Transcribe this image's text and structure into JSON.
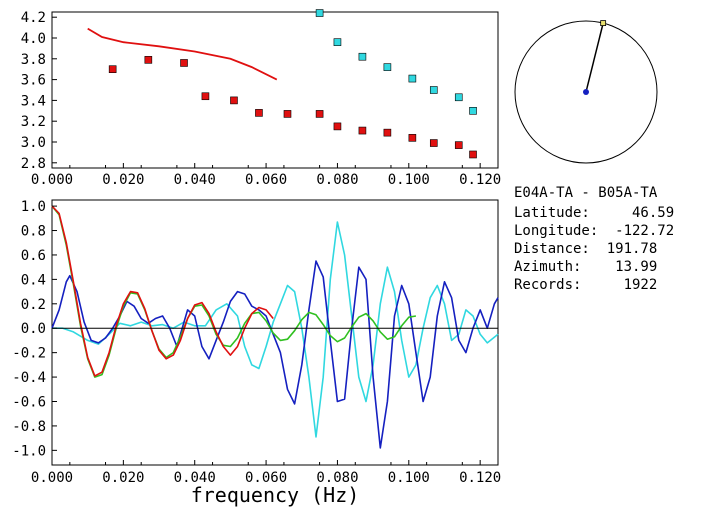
{
  "chart_data": [
    {
      "type": "scatter",
      "panel": "dispersion",
      "xlim": [
        0.0,
        0.125
      ],
      "ylim": [
        2.75,
        4.25
      ],
      "x_ticks": [
        "0.000",
        "0.020",
        "0.040",
        "0.060",
        "0.080",
        "0.100",
        "0.120"
      ],
      "y_ticks": [
        "2.8",
        "3.0",
        "3.2",
        "3.4",
        "3.6",
        "3.8",
        "4.0",
        "4.2"
      ],
      "grid": false,
      "series": [
        {
          "marker": "square",
          "color": "#e01010",
          "points": [
            [
              0.017,
              3.7
            ],
            [
              0.027,
              3.79
            ],
            [
              0.037,
              3.76
            ],
            [
              0.043,
              3.44
            ],
            [
              0.051,
              3.4
            ],
            [
              0.058,
              3.28
            ],
            [
              0.066,
              3.27
            ],
            [
              0.075,
              3.27
            ],
            [
              0.08,
              3.15
            ],
            [
              0.087,
              3.11
            ],
            [
              0.094,
              3.09
            ],
            [
              0.101,
              3.04
            ],
            [
              0.107,
              2.99
            ],
            [
              0.114,
              2.97
            ],
            [
              0.118,
              2.88
            ]
          ]
        },
        {
          "marker": "square",
          "color": "#30d8e0",
          "points": [
            [
              0.075,
              4.24
            ],
            [
              0.08,
              3.96
            ],
            [
              0.087,
              3.82
            ],
            [
              0.094,
              3.72
            ],
            [
              0.101,
              3.61
            ],
            [
              0.107,
              3.5
            ],
            [
              0.114,
              3.43
            ],
            [
              0.118,
              3.3
            ]
          ]
        },
        {
          "marker": "line",
          "color": "#e01010",
          "points": [
            [
              0.01,
              4.09
            ],
            [
              0.014,
              4.01
            ],
            [
              0.02,
              3.96
            ],
            [
              0.03,
              3.92
            ],
            [
              0.04,
              3.87
            ],
            [
              0.05,
              3.8
            ],
            [
              0.056,
              3.72
            ],
            [
              0.063,
              3.6
            ]
          ]
        }
      ]
    },
    {
      "type": "line",
      "panel": "correlation",
      "xlim": [
        0.0,
        0.125
      ],
      "ylim": [
        -1.12,
        1.05
      ],
      "x_ticks": [
        "0.000",
        "0.020",
        "0.040",
        "0.060",
        "0.080",
        "0.100",
        "0.120"
      ],
      "y_ticks": [
        "1.0",
        "0.8",
        "0.6",
        "0.4",
        "0.2",
        "0.0",
        "-0.2",
        "-0.4",
        "-0.6",
        "-0.8",
        "-1.0"
      ],
      "xlabel": "frequency (Hz)",
      "grid": false,
      "series": [
        {
          "color": "#30d8e0",
          "points": [
            [
              0.0,
              0.0
            ],
            [
              0.003,
              0.0
            ],
            [
              0.006,
              -0.03
            ],
            [
              0.01,
              -0.1
            ],
            [
              0.013,
              -0.13
            ],
            [
              0.016,
              -0.05
            ],
            [
              0.019,
              0.04
            ],
            [
              0.022,
              0.02
            ],
            [
              0.025,
              0.05
            ],
            [
              0.028,
              0.02
            ],
            [
              0.031,
              0.03
            ],
            [
              0.034,
              0.0
            ],
            [
              0.037,
              0.05
            ],
            [
              0.04,
              0.02
            ],
            [
              0.043,
              0.02
            ],
            [
              0.046,
              0.15
            ],
            [
              0.049,
              0.2
            ],
            [
              0.052,
              0.1
            ],
            [
              0.054,
              -0.15
            ],
            [
              0.056,
              -0.3
            ],
            [
              0.058,
              -0.33
            ],
            [
              0.06,
              -0.15
            ],
            [
              0.062,
              0.05
            ],
            [
              0.064,
              0.2
            ],
            [
              0.066,
              0.35
            ],
            [
              0.068,
              0.3
            ],
            [
              0.07,
              0.0
            ],
            [
              0.072,
              -0.4
            ],
            [
              0.074,
              -0.89
            ],
            [
              0.076,
              -0.4
            ],
            [
              0.078,
              0.4
            ],
            [
              0.08,
              0.87
            ],
            [
              0.082,
              0.6
            ],
            [
              0.084,
              0.1
            ],
            [
              0.086,
              -0.4
            ],
            [
              0.088,
              -0.6
            ],
            [
              0.09,
              -0.3
            ],
            [
              0.092,
              0.2
            ],
            [
              0.094,
              0.5
            ],
            [
              0.096,
              0.3
            ],
            [
              0.098,
              -0.1
            ],
            [
              0.1,
              -0.4
            ],
            [
              0.102,
              -0.3
            ],
            [
              0.104,
              0.0
            ],
            [
              0.106,
              0.25
            ],
            [
              0.108,
              0.35
            ],
            [
              0.11,
              0.2
            ],
            [
              0.112,
              -0.1
            ],
            [
              0.114,
              -0.05
            ],
            [
              0.116,
              0.15
            ],
            [
              0.118,
              0.1
            ],
            [
              0.12,
              -0.05
            ],
            [
              0.122,
              -0.12
            ],
            [
              0.125,
              -0.05
            ]
          ]
        },
        {
          "color": "#1520c0",
          "points": [
            [
              0.0,
              0.0
            ],
            [
              0.002,
              0.15
            ],
            [
              0.004,
              0.38
            ],
            [
              0.005,
              0.43
            ],
            [
              0.007,
              0.3
            ],
            [
              0.009,
              0.05
            ],
            [
              0.011,
              -0.1
            ],
            [
              0.013,
              -0.12
            ],
            [
              0.015,
              -0.08
            ],
            [
              0.017,
              0.0
            ],
            [
              0.019,
              0.1
            ],
            [
              0.021,
              0.22
            ],
            [
              0.023,
              0.18
            ],
            [
              0.025,
              0.08
            ],
            [
              0.027,
              0.04
            ],
            [
              0.029,
              0.08
            ],
            [
              0.031,
              0.1
            ],
            [
              0.033,
              0.0
            ],
            [
              0.035,
              -0.15
            ],
            [
              0.036,
              -0.05
            ],
            [
              0.038,
              0.15
            ],
            [
              0.04,
              0.1
            ],
            [
              0.042,
              -0.15
            ],
            [
              0.044,
              -0.25
            ],
            [
              0.046,
              -0.1
            ],
            [
              0.048,
              0.05
            ],
            [
              0.05,
              0.22
            ],
            [
              0.052,
              0.3
            ],
            [
              0.054,
              0.28
            ],
            [
              0.056,
              0.18
            ],
            [
              0.058,
              0.15
            ],
            [
              0.06,
              0.1
            ],
            [
              0.062,
              -0.05
            ],
            [
              0.064,
              -0.2
            ],
            [
              0.066,
              -0.5
            ],
            [
              0.068,
              -0.62
            ],
            [
              0.07,
              -0.3
            ],
            [
              0.072,
              0.15
            ],
            [
              0.074,
              0.55
            ],
            [
              0.076,
              0.42
            ],
            [
              0.078,
              -0.1
            ],
            [
              0.08,
              -0.6
            ],
            [
              0.082,
              -0.58
            ],
            [
              0.084,
              0.0
            ],
            [
              0.086,
              0.5
            ],
            [
              0.088,
              0.4
            ],
            [
              0.09,
              -0.4
            ],
            [
              0.092,
              -0.98
            ],
            [
              0.094,
              -0.6
            ],
            [
              0.096,
              0.1
            ],
            [
              0.098,
              0.35
            ],
            [
              0.1,
              0.2
            ],
            [
              0.102,
              -0.2
            ],
            [
              0.104,
              -0.6
            ],
            [
              0.106,
              -0.4
            ],
            [
              0.108,
              0.1
            ],
            [
              0.11,
              0.38
            ],
            [
              0.112,
              0.25
            ],
            [
              0.114,
              -0.1
            ],
            [
              0.116,
              -0.2
            ],
            [
              0.118,
              0.0
            ],
            [
              0.12,
              0.15
            ],
            [
              0.122,
              0.0
            ],
            [
              0.124,
              0.2
            ],
            [
              0.125,
              0.25
            ]
          ]
        },
        {
          "color": "#30c020",
          "points": [
            [
              0.0,
              1.0
            ],
            [
              0.002,
              0.93
            ],
            [
              0.004,
              0.68
            ],
            [
              0.006,
              0.36
            ],
            [
              0.008,
              0.02
            ],
            [
              0.01,
              -0.25
            ],
            [
              0.012,
              -0.4
            ],
            [
              0.014,
              -0.38
            ],
            [
              0.016,
              -0.22
            ],
            [
              0.018,
              0.0
            ],
            [
              0.02,
              0.18
            ],
            [
              0.022,
              0.29
            ],
            [
              0.024,
              0.28
            ],
            [
              0.026,
              0.15
            ],
            [
              0.028,
              -0.02
            ],
            [
              0.03,
              -0.17
            ],
            [
              0.032,
              -0.24
            ],
            [
              0.034,
              -0.2
            ],
            [
              0.036,
              -0.07
            ],
            [
              0.038,
              0.08
            ],
            [
              0.04,
              0.18
            ],
            [
              0.042,
              0.19
            ],
            [
              0.044,
              0.1
            ],
            [
              0.046,
              -0.05
            ],
            [
              0.048,
              -0.14
            ],
            [
              0.05,
              -0.15
            ],
            [
              0.052,
              -0.08
            ],
            [
              0.054,
              0.04
            ],
            [
              0.056,
              0.12
            ],
            [
              0.058,
              0.13
            ],
            [
              0.06,
              0.06
            ],
            [
              0.062,
              -0.04
            ],
            [
              0.064,
              -0.1
            ],
            [
              0.066,
              -0.09
            ],
            [
              0.068,
              -0.02
            ],
            [
              0.07,
              0.07
            ],
            [
              0.072,
              0.13
            ],
            [
              0.074,
              0.11
            ],
            [
              0.076,
              0.03
            ],
            [
              0.078,
              -0.06
            ],
            [
              0.08,
              -0.11
            ],
            [
              0.082,
              -0.08
            ],
            [
              0.084,
              0.01
            ],
            [
              0.086,
              0.09
            ],
            [
              0.088,
              0.12
            ],
            [
              0.09,
              0.06
            ],
            [
              0.092,
              -0.03
            ],
            [
              0.094,
              -0.09
            ],
            [
              0.096,
              -0.07
            ],
            [
              0.098,
              0.02
            ],
            [
              0.1,
              0.09
            ],
            [
              0.102,
              0.1
            ]
          ]
        },
        {
          "color": "#e01010",
          "points": [
            [
              0.0,
              1.0
            ],
            [
              0.002,
              0.94
            ],
            [
              0.004,
              0.7
            ],
            [
              0.006,
              0.38
            ],
            [
              0.008,
              0.04
            ],
            [
              0.01,
              -0.24
            ],
            [
              0.012,
              -0.39
            ],
            [
              0.014,
              -0.36
            ],
            [
              0.016,
              -0.2
            ],
            [
              0.018,
              0.02
            ],
            [
              0.02,
              0.2
            ],
            [
              0.022,
              0.3
            ],
            [
              0.024,
              0.29
            ],
            [
              0.026,
              0.16
            ],
            [
              0.028,
              -0.02
            ],
            [
              0.03,
              -0.18
            ],
            [
              0.032,
              -0.25
            ],
            [
              0.034,
              -0.22
            ],
            [
              0.036,
              -0.1
            ],
            [
              0.038,
              0.08
            ],
            [
              0.04,
              0.19
            ],
            [
              0.042,
              0.21
            ],
            [
              0.044,
              0.12
            ],
            [
              0.046,
              -0.03
            ],
            [
              0.048,
              -0.15
            ],
            [
              0.05,
              -0.22
            ],
            [
              0.052,
              -0.15
            ],
            [
              0.054,
              0.0
            ],
            [
              0.056,
              0.12
            ],
            [
              0.058,
              0.17
            ],
            [
              0.06,
              0.15
            ],
            [
              0.062,
              0.08
            ]
          ]
        }
      ]
    },
    {
      "type": "polar",
      "panel": "azimuth",
      "azimuth_deg": 13.99,
      "marker_radius_fraction": 1.0
    }
  ],
  "info": {
    "pair": "E04A-TA - B05A-TA",
    "lines": [
      "Latitude:     46.59",
      "Longitude:  -122.72",
      "Distance:  191.78",
      "Azimuth:    13.99",
      "Records:     1922"
    ]
  }
}
